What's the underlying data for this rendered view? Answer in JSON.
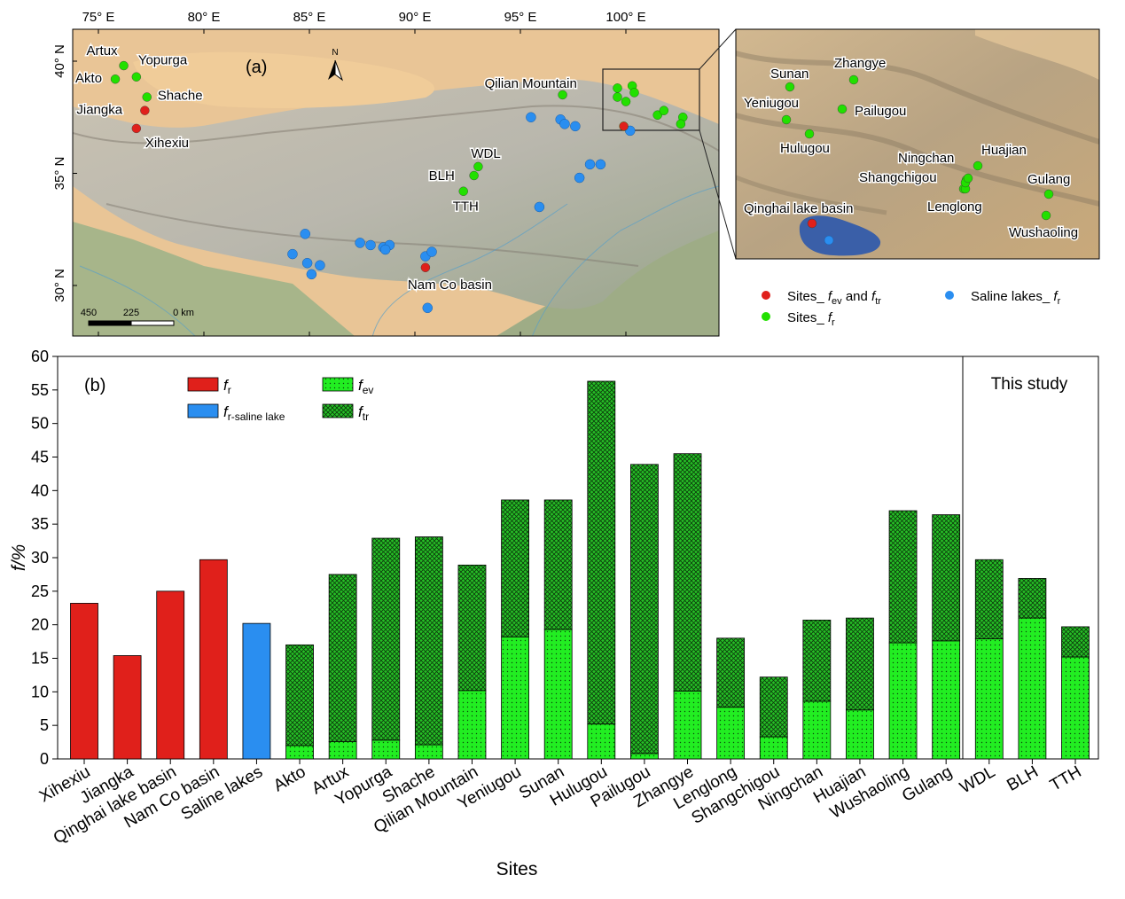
{
  "panel_a": {
    "label": "(a)",
    "lon_ticks": [
      "75° E",
      "80° E",
      "85° E",
      "90° E",
      "95° E",
      "100° E"
    ],
    "lat_ticks": [
      "40° N",
      "35° N",
      "30° N"
    ],
    "north_label": "N",
    "scale_bar": {
      "labels": [
        "450",
        "225",
        "0 km"
      ]
    },
    "sites": [
      {
        "name": "Artux",
        "type": "fr",
        "lon": 76.2,
        "lat": 39.8
      },
      {
        "name": "Yopurga",
        "type": "fr",
        "lon": 76.8,
        "lat": 39.3
      },
      {
        "name": "Akto",
        "type": "fr",
        "lon": 75.8,
        "lat": 39.2
      },
      {
        "name": "Shache",
        "type": "fr",
        "lon": 77.3,
        "lat": 38.4
      },
      {
        "name": "Jiangka",
        "type": "fev_ftr",
        "lon": 77.2,
        "lat": 37.8
      },
      {
        "name": "Xihexiu",
        "type": "fev_ftr",
        "lon": 76.8,
        "lat": 37.0
      },
      {
        "name": "Qilian Mountain",
        "type": "fr",
        "lon": 97.0,
        "lat": 38.5
      },
      {
        "name": "WDL",
        "type": "fr",
        "lon": 93.0,
        "lat": 35.3
      },
      {
        "name": "BLH",
        "type": "fr",
        "lon": 92.8,
        "lat": 34.9
      },
      {
        "name": "TTH",
        "type": "fr",
        "lon": 92.3,
        "lat": 34.2
      },
      {
        "name": "Nam Co basin",
        "type": "fev_ftr",
        "lon": 90.5,
        "lat": 30.8
      }
    ],
    "other_sites": [
      {
        "type": "fr",
        "lon": 99.6,
        "lat": 38.8
      },
      {
        "type": "fr",
        "lon": 100.3,
        "lat": 38.9
      },
      {
        "type": "fr",
        "lon": 99.6,
        "lat": 38.4
      },
      {
        "type": "fr",
        "lon": 100.0,
        "lat": 38.2
      },
      {
        "type": "fr",
        "lon": 100.4,
        "lat": 38.6
      },
      {
        "type": "fr",
        "lon": 101.5,
        "lat": 37.6
      },
      {
        "type": "fr",
        "lon": 101.8,
        "lat": 37.8
      },
      {
        "type": "fr",
        "lon": 102.7,
        "lat": 37.5
      },
      {
        "type": "fr",
        "lon": 102.6,
        "lat": 37.2
      },
      {
        "type": "fev_ftr",
        "lon": 99.9,
        "lat": 37.1
      }
    ],
    "saline_lakes": [
      {
        "lon": 95.5,
        "lat": 37.5
      },
      {
        "lon": 96.9,
        "lat": 37.4
      },
      {
        "lon": 97.1,
        "lat": 37.2
      },
      {
        "lon": 97.6,
        "lat": 37.1
      },
      {
        "lon": 100.2,
        "lat": 36.9
      },
      {
        "lon": 98.3,
        "lat": 35.4
      },
      {
        "lon": 98.8,
        "lat": 35.4
      },
      {
        "lon": 97.8,
        "lat": 34.8
      },
      {
        "lon": 95.9,
        "lat": 33.5
      },
      {
        "lon": 84.8,
        "lat": 32.3
      },
      {
        "lon": 84.2,
        "lat": 31.4
      },
      {
        "lon": 84.9,
        "lat": 31.0
      },
      {
        "lon": 85.5,
        "lat": 30.9
      },
      {
        "lon": 85.1,
        "lat": 30.5
      },
      {
        "lon": 87.4,
        "lat": 31.9
      },
      {
        "lon": 87.9,
        "lat": 31.8
      },
      {
        "lon": 88.5,
        "lat": 31.7
      },
      {
        "lon": 88.8,
        "lat": 31.8
      },
      {
        "lon": 88.6,
        "lat": 31.6
      },
      {
        "lon": 90.5,
        "lat": 31.3
      },
      {
        "lon": 90.8,
        "lat": 31.5
      },
      {
        "lon": 90.6,
        "lat": 29.0
      }
    ],
    "inset": {
      "sites": [
        {
          "name": "Sunan",
          "type": "fr"
        },
        {
          "name": "Zhangye",
          "type": "fr"
        },
        {
          "name": "Yeniugou",
          "type": "fr"
        },
        {
          "name": "Pailugou",
          "type": "fr"
        },
        {
          "name": "Hulugou",
          "type": "fr"
        },
        {
          "name": "Ningchan",
          "type": "fr"
        },
        {
          "name": "Huajian",
          "type": "fr"
        },
        {
          "name": "Shangchigou",
          "type": "fr"
        },
        {
          "name": "Gulang",
          "type": "fr"
        },
        {
          "name": "Lenglong",
          "type": "fr"
        },
        {
          "name": "Wushaoling",
          "type": "fr"
        },
        {
          "name": "Qinghai lake basin",
          "type": "fev_ftr"
        }
      ]
    },
    "legend": {
      "red": {
        "text_a": "Sites_ ",
        "sym1": "f",
        "sub1": "ev",
        "mid": " and ",
        "sym2": "f",
        "sub2": "tr"
      },
      "green": {
        "text_a": "Sites_ ",
        "sym": "f",
        "sub": "r"
      },
      "blue": {
        "text_a": "Saline lakes_ ",
        "sym": "f",
        "sub": "r"
      }
    },
    "colors": {
      "fev_ftr": "#e0201b",
      "fr": "#22e000",
      "saline": "#2a8ef0",
      "desert": "#e6bf8e",
      "plateau": "#b7b1a3"
    }
  },
  "chart_data": {
    "type": "bar",
    "panel_label": "(b)",
    "xlabel": "Sites",
    "ylabel": "f/%",
    "ylim": [
      0,
      60
    ],
    "yticks": [
      0,
      5,
      10,
      15,
      20,
      25,
      30,
      35,
      40,
      45,
      50,
      55,
      60
    ],
    "section_label": "This study",
    "categories": [
      "Xihexiu",
      "Jiangka",
      "Qinghai lake basin",
      "Nam Co basin",
      "Saline lakes",
      "Akto",
      "Artux",
      "Yopurga",
      "Shache",
      "Qilian Mountain",
      "Yeniugou",
      "Sunan",
      "Hulugou",
      "Pailugou",
      "Zhangye",
      "Lenglong",
      "Shangchigou",
      "Ningchan",
      "Huajian",
      "Wushaoling",
      "Gulang",
      "WDL",
      "BLH",
      "TTH"
    ],
    "series": [
      {
        "name": "f_r",
        "values": [
          23.2,
          15.4,
          25.0,
          29.7,
          null,
          null,
          null,
          null,
          null,
          null,
          null,
          null,
          null,
          null,
          null,
          null,
          null,
          null,
          null,
          null,
          null,
          null,
          null,
          null
        ]
      },
      {
        "name": "f_r-saline lake",
        "values": [
          null,
          null,
          null,
          null,
          20.2,
          null,
          null,
          null,
          null,
          null,
          null,
          null,
          null,
          null,
          null,
          null,
          null,
          null,
          null,
          null,
          null,
          null,
          null,
          null
        ]
      },
      {
        "name": "f_ev",
        "values": [
          null,
          null,
          null,
          null,
          null,
          2.0,
          2.6,
          2.8,
          2.1,
          10.2,
          18.2,
          19.3,
          5.2,
          0.8,
          10.1,
          7.7,
          3.3,
          8.6,
          7.3,
          17.3,
          17.6,
          17.9,
          21.0,
          15.2
        ]
      },
      {
        "name": "f_tr",
        "values": [
          null,
          null,
          null,
          null,
          null,
          15.0,
          24.9,
          30.1,
          31.0,
          18.7,
          20.4,
          19.3,
          51.1,
          43.1,
          35.4,
          10.3,
          8.9,
          12.1,
          13.7,
          19.7,
          18.8,
          11.8,
          5.9,
          4.5
        ]
      }
    ],
    "legend": [
      {
        "sym": "f",
        "sub": "r",
        "color": "#e0201b"
      },
      {
        "sym": "f",
        "sub": "r-saline lake",
        "color": "#2a8ef0"
      },
      {
        "sym": "f",
        "sub": "ev",
        "color": "#22e000"
      },
      {
        "sym": "f",
        "sub": "tr",
        "color": "#22b000"
      }
    ]
  }
}
